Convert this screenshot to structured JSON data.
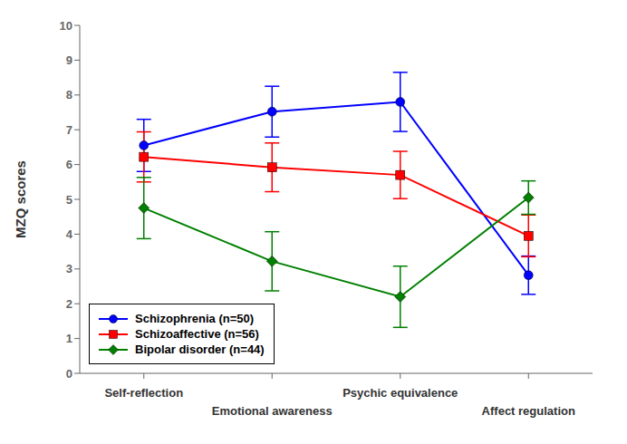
{
  "chart_data": {
    "type": "line",
    "y_label": "MZQ scores",
    "categories": [
      "Self-reflection",
      "Emotional awareness",
      "Psychic equivalence",
      "Affect regulation"
    ],
    "series": [
      {
        "name": "Schizophrenia (n=50)",
        "color": "#0000FF",
        "marker": "circle",
        "values": [
          6.55,
          7.52,
          7.8,
          2.82
        ],
        "errors": [
          0.75,
          0.73,
          0.85,
          0.55
        ]
      },
      {
        "name": "Schizoaffective (n=56)",
        "color": "#FF0000",
        "marker": "square",
        "values": [
          6.22,
          5.92,
          5.7,
          3.95
        ],
        "errors": [
          0.72,
          0.7,
          0.68,
          0.6
        ]
      },
      {
        "name": "Bipolar disorder (n=44)",
        "color": "#008000",
        "marker": "diamond",
        "values": [
          4.75,
          3.22,
          2.2,
          5.05
        ],
        "errors": [
          0.88,
          0.85,
          0.88,
          0.48
        ]
      }
    ],
    "ylim": [
      0,
      10
    ],
    "yticks": [
      0,
      1,
      2,
      3,
      4,
      5,
      6,
      7,
      8,
      9,
      10
    ],
    "legend": "lower left",
    "grid": false
  }
}
